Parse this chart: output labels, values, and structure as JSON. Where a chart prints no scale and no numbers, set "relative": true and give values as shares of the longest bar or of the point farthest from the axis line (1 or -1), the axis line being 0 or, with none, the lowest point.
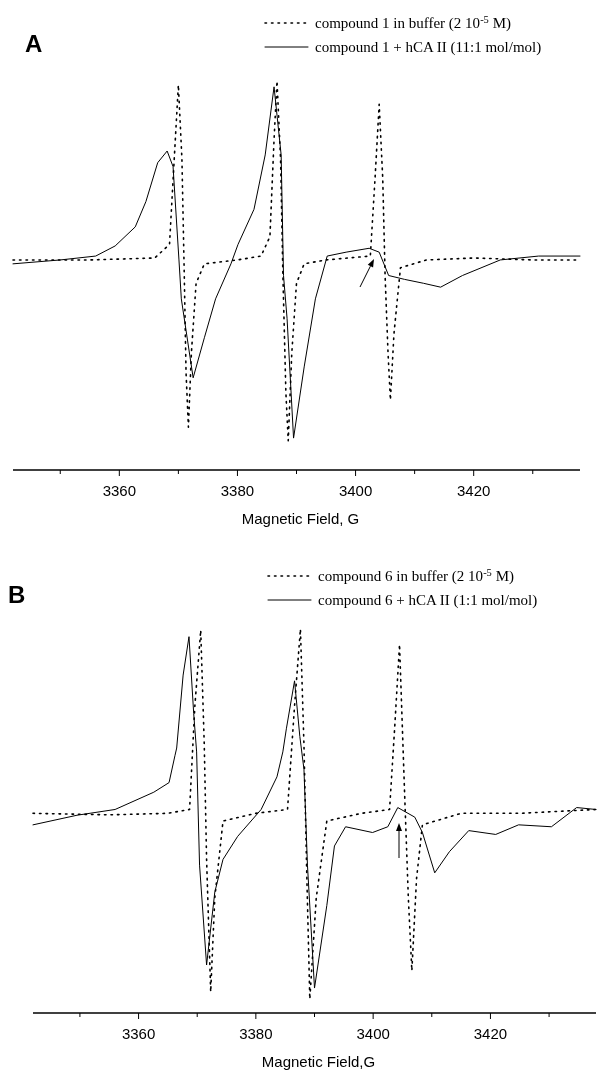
{
  "chart_data": [
    {
      "type": "line",
      "title": "A",
      "xlabel": "Magnetic Field, G",
      "relative": true,
      "xlim": [
        3342,
        3438
      ],
      "xticks": [
        {
          "value": 3350,
          "label": null
        },
        3360,
        {
          "value": 3370,
          "label": null
        },
        3380,
        {
          "value": 3390,
          "label": null
        },
        3400,
        {
          "value": 3410,
          "label": null
        },
        3420,
        {
          "value": 3430,
          "label": null
        }
      ],
      "legend": "top right",
      "grid": false,
      "series": [
        {
          "name": "compound 1 in buffer (2 10$^{-5}$ M)",
          "color": "#000000",
          "line_style": "dotted",
          "x": [
            3342,
            3355,
            3366,
            3368.5,
            3369.3,
            3370,
            3370.6,
            3371,
            3371.3,
            3371.7,
            3372.2,
            3373,
            3374.4,
            3380,
            3384,
            3385.5,
            3386.2,
            3386.7,
            3387.3,
            3387.7,
            3388.2,
            3388.6,
            3389.2,
            3390,
            3391.3,
            3395,
            3402.5,
            3403.3,
            3404,
            3404.6,
            3405,
            3405.5,
            3405.9,
            3406.5,
            3407.6,
            3412,
            3420,
            3430,
            3438
          ],
          "values": [
            0.54,
            0.54,
            0.545,
            0.58,
            0.8,
            0.99,
            0.8,
            0.5,
            0.25,
            0.11,
            0.3,
            0.48,
            0.53,
            0.54,
            0.55,
            0.6,
            0.85,
            1.0,
            0.8,
            0.5,
            0.2,
            0.075,
            0.3,
            0.48,
            0.53,
            0.54,
            0.55,
            0.75,
            0.94,
            0.75,
            0.5,
            0.3,
            0.18,
            0.35,
            0.52,
            0.54,
            0.545,
            0.54,
            0.54
          ]
        },
        {
          "name": "compound 1 + hCA II (11:1 mol/mol)",
          "color": "#000000",
          "line_style": "solid",
          "x": [
            3342,
            3350,
            3356,
            3359.3,
            3362.7,
            3364.5,
            3366.5,
            3368.1,
            3369.1,
            3370.1,
            3370.5,
            3372.5,
            3374.4,
            3376.3,
            3378.9,
            3380.1,
            3382.8,
            3384.7,
            3386.2,
            3387.4,
            3387.8,
            3388.4,
            3389.5,
            3391.3,
            3393.2,
            3395.2,
            3398.4,
            3402.3,
            3404,
            3405.6,
            3408.3,
            3411.5,
            3414.4,
            3418.1,
            3424.5,
            3431,
            3438
          ],
          "values": [
            0.53,
            0.54,
            0.55,
            0.576,
            0.625,
            0.69,
            0.79,
            0.82,
            0.78,
            0.54,
            0.44,
            0.237,
            0.34,
            0.44,
            0.53,
            0.58,
            0.67,
            0.81,
            0.985,
            0.81,
            0.5,
            0.39,
            0.082,
            0.265,
            0.44,
            0.55,
            0.56,
            0.57,
            0.56,
            0.5,
            0.49,
            0.48,
            0.47,
            0.5,
            0.54,
            0.55,
            0.55
          ]
        }
      ]
    },
    {
      "type": "line",
      "title": "B",
      "xlabel": "Magnetic Field,G",
      "relative": true,
      "xlim": [
        3342,
        3438
      ],
      "xticks": [
        {
          "value": 3350,
          "label": null
        },
        3360,
        {
          "value": 3370,
          "label": null
        },
        3380,
        {
          "value": 3390,
          "label": null
        },
        3400,
        {
          "value": 3410,
          "label": null
        },
        3420,
        {
          "value": 3430,
          "label": null
        }
      ],
      "legend": "top right",
      "grid": false,
      "series": [
        {
          "name": "compound 6 in buffer (2 10$^{-5}$ M)",
          "color": "#000000",
          "line_style": "dotted",
          "x": [
            3342,
            3355,
            3365,
            3368.7,
            3369.6,
            3370.6,
            3371.2,
            3371.6,
            3372.3,
            3373,
            3374.4,
            3380,
            3385.4,
            3386.6,
            3387.6,
            3388.2,
            3388.7,
            3389.2,
            3390.3,
            3392.1,
            3398,
            3402.8,
            3403.7,
            3404.5,
            3405.3,
            3406,
            3406.6,
            3407.4,
            3408.4,
            3415,
            3425,
            3438
          ],
          "values": [
            0.52,
            0.516,
            0.52,
            0.53,
            0.8,
            0.997,
            0.7,
            0.4,
            0.055,
            0.3,
            0.5,
            0.52,
            0.53,
            0.8,
            1.0,
            0.7,
            0.35,
            0.036,
            0.3,
            0.5,
            0.52,
            0.53,
            0.75,
            0.96,
            0.6,
            0.3,
            0.11,
            0.35,
            0.49,
            0.52,
            0.52,
            0.53
          ]
        },
        {
          "name": "compound 6 + hCA II (1:1 mol/mol)",
          "color": "#000000",
          "line_style": "solid",
          "x": [
            3342,
            3349.5,
            3356,
            3362.6,
            3365.2,
            3366.2,
            3366.5,
            3367.6,
            3368.6,
            3369.4,
            3369.9,
            3370.4,
            3371.6,
            3373,
            3374.4,
            3376.9,
            3380.9,
            3383.6,
            3384.6,
            3385.2,
            3386.6,
            3387.5,
            3388.2,
            3388.8,
            3390,
            3392.1,
            3393.4,
            3395.3,
            3399.9,
            3402.5,
            3404.2,
            3407.1,
            3408.4,
            3410.5,
            3413,
            3416.3,
            3420.9,
            3424.8,
            3430.4,
            3434.7,
            3438
          ],
          "values": [
            0.49,
            0.515,
            0.53,
            0.575,
            0.6,
            0.67,
            0.69,
            0.88,
            0.98,
            0.78,
            0.68,
            0.385,
            0.125,
            0.315,
            0.4,
            0.46,
            0.53,
            0.615,
            0.68,
            0.74,
            0.865,
            0.72,
            0.635,
            0.385,
            0.065,
            0.28,
            0.435,
            0.485,
            0.47,
            0.485,
            0.535,
            0.51,
            0.47,
            0.365,
            0.42,
            0.475,
            0.465,
            0.49,
            0.485,
            0.535,
            0.53
          ]
        }
      ]
    }
  ]
}
